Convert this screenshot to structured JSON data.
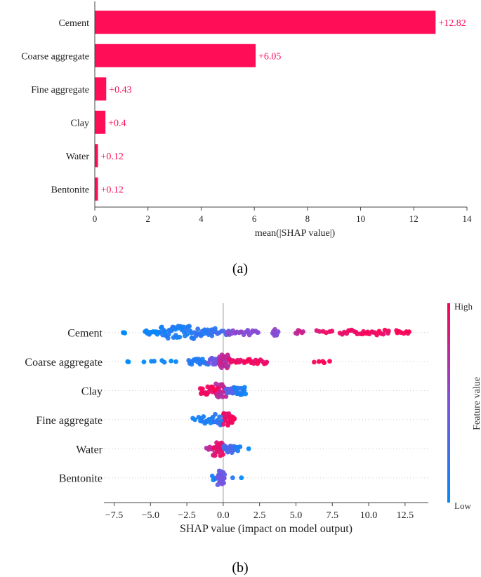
{
  "chart_data": [
    {
      "type": "bar",
      "panel": "(a)",
      "categories": [
        "Cement",
        "Coarse aggregate",
        "Fine aggregate",
        "Clay",
        "Water",
        "Bentonite"
      ],
      "values": [
        12.82,
        6.05,
        0.43,
        0.4,
        0.12,
        0.12
      ],
      "value_labels": [
        "+12.82",
        "+6.05",
        "+0.43",
        "+0.4",
        "+0.12",
        "+0.12"
      ],
      "xlabel": "mean(|SHAP value|)",
      "ylabel": "",
      "xlim": [
        0,
        14
      ],
      "xticks": [
        0,
        2,
        4,
        6,
        8,
        10,
        12,
        14
      ],
      "bar_color": "#ff0d57",
      "label_color": "#ff0d57"
    },
    {
      "type": "scatter",
      "panel": "(b)",
      "categories": [
        "Cement",
        "Coarse aggregate",
        "Clay",
        "Fine aggregate",
        "Water",
        "Bentonite"
      ],
      "xlabel": "SHAP value (impact on model output)",
      "xlim": [
        -8.2,
        14.1
      ],
      "xticks": [
        -7.5,
        -5.0,
        -2.5,
        0.0,
        2.5,
        5.0,
        7.5,
        10.0,
        12.5
      ],
      "xtick_labels": [
        "−7.5",
        "−5.0",
        "−2.5",
        "0.0",
        "2.5",
        "5.0",
        "7.5",
        "10.0",
        "12.5"
      ],
      "colorbar": {
        "label": "Feature value",
        "high": "High",
        "low": "Low",
        "low_color": "#008bfb",
        "high_color": "#ff0052"
      },
      "series": [
        {
          "name": "Cement",
          "segments": [
            {
              "from": -6.9,
              "to": -6.7,
              "n": 3,
              "spread": 0.1,
              "feature_value": 0.0
            },
            {
              "from": -5.4,
              "to": -4.3,
              "n": 14,
              "spread": 0.3,
              "feature_value": 0.05
            },
            {
              "from": -4.3,
              "to": -2.0,
              "n": 40,
              "spread": 0.95,
              "feature_value": 0.12
            },
            {
              "from": -2.0,
              "to": -0.5,
              "n": 20,
              "spread": 0.6,
              "feature_value": 0.18
            },
            {
              "from": -0.8,
              "to": 0.5,
              "n": 10,
              "spread": 0.35,
              "feature_value": 0.25
            },
            {
              "from": 0.2,
              "to": 2.5,
              "n": 22,
              "spread": 0.35,
              "feature_value": 0.55
            },
            {
              "from": 3.4,
              "to": 3.8,
              "n": 8,
              "spread": 0.45,
              "feature_value": 0.55
            },
            {
              "from": 4.9,
              "to": 5.6,
              "n": 6,
              "spread": 0.4,
              "feature_value": 0.8
            },
            {
              "from": 6.4,
              "to": 7.6,
              "n": 6,
              "spread": 0.4,
              "feature_value": 0.9
            },
            {
              "from": 8.0,
              "to": 11.5,
              "n": 26,
              "spread": 0.35,
              "feature_value": 0.95
            },
            {
              "from": 11.8,
              "to": 12.9,
              "n": 8,
              "spread": 0.3,
              "feature_value": 1.0
            }
          ]
        },
        {
          "name": "Coarse aggregate",
          "segments": [
            {
              "from": -6.6,
              "to": -6.5,
              "n": 2,
              "spread": 0.05,
              "feature_value": 0.0
            },
            {
              "from": -5.5,
              "to": -3.1,
              "n": 7,
              "spread": 0.15,
              "feature_value": 0.02
            },
            {
              "from": -2.4,
              "to": -1.0,
              "n": 22,
              "spread": 0.4,
              "feature_value": 0.15
            },
            {
              "from": -1.0,
              "to": 0.1,
              "n": 20,
              "spread": 0.6,
              "feature_value": 0.45
            },
            {
              "from": -0.3,
              "to": 0.4,
              "n": 25,
              "spread": 1.0,
              "feature_value": 0.75
            },
            {
              "from": 0.4,
              "to": 3.1,
              "n": 24,
              "spread": 0.35,
              "feature_value": 0.95
            },
            {
              "from": 6.2,
              "to": 7.4,
              "n": 5,
              "spread": 0.2,
              "feature_value": 1.0
            }
          ]
        },
        {
          "name": "Clay",
          "segments": [
            {
              "from": -1.6,
              "to": -0.3,
              "n": 22,
              "spread": 0.55,
              "feature_value": 0.95
            },
            {
              "from": -0.5,
              "to": 0.2,
              "n": 20,
              "spread": 1.0,
              "feature_value": 0.75
            },
            {
              "from": 0.2,
              "to": 1.0,
              "n": 16,
              "spread": 0.45,
              "feature_value": 0.35
            },
            {
              "from": 0.8,
              "to": 1.6,
              "n": 12,
              "spread": 0.6,
              "feature_value": 0.1
            }
          ]
        },
        {
          "name": "Fine aggregate",
          "segments": [
            {
              "from": -2.1,
              "to": -1.9,
              "n": 2,
              "spread": 0.35,
              "feature_value": 0.05
            },
            {
              "from": -1.7,
              "to": -0.6,
              "n": 14,
              "spread": 0.55,
              "feature_value": 0.1
            },
            {
              "from": -0.6,
              "to": 0.0,
              "n": 14,
              "spread": 1.0,
              "feature_value": 0.2
            },
            {
              "from": 0.0,
              "to": 0.4,
              "n": 14,
              "spread": 0.9,
              "feature_value": 0.9
            },
            {
              "from": 0.4,
              "to": 0.8,
              "n": 10,
              "spread": 0.5,
              "feature_value": 1.0
            }
          ]
        },
        {
          "name": "Water",
          "segments": [
            {
              "from": -1.2,
              "to": -0.7,
              "n": 4,
              "spread": 0.25,
              "feature_value": 0.75
            },
            {
              "from": -0.7,
              "to": 0.0,
              "n": 26,
              "spread": 1.0,
              "feature_value": 0.9
            },
            {
              "from": 0.0,
              "to": 0.8,
              "n": 18,
              "spread": 0.55,
              "feature_value": 0.3
            },
            {
              "from": 0.8,
              "to": 1.2,
              "n": 5,
              "spread": 0.3,
              "feature_value": 0.1
            },
            {
              "from": 1.7,
              "to": 1.8,
              "n": 1,
              "spread": 0.0,
              "feature_value": 0.0
            }
          ]
        },
        {
          "name": "Bentonite",
          "segments": [
            {
              "from": -0.8,
              "to": -0.4,
              "n": 5,
              "spread": 0.35,
              "feature_value": 0.1
            },
            {
              "from": -0.4,
              "to": 0.1,
              "n": 24,
              "spread": 1.0,
              "feature_value": 0.45
            },
            {
              "from": 0.6,
              "to": 0.7,
              "n": 1,
              "spread": 0.0,
              "feature_value": 0.2
            },
            {
              "from": 1.2,
              "to": 1.3,
              "n": 1,
              "spread": 0.0,
              "feature_value": 0.0
            }
          ]
        }
      ]
    }
  ]
}
